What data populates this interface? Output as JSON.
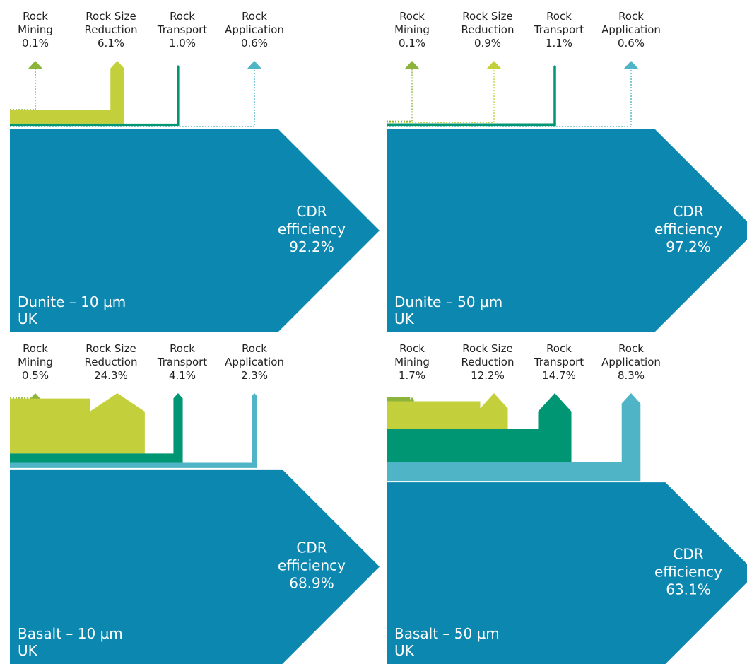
{
  "colors": {
    "mining": "#8db43a",
    "size_reduction": "#c4d03b",
    "transport": "#009674",
    "application": "#4fb5c6",
    "cdr": "#0b87b0"
  },
  "panels": [
    {
      "rock": "Dunite – 10 µm",
      "region": "UK",
      "cdr": {
        "lines": [
          "CDR",
          "efficiency",
          "92.2%"
        ],
        "value": 92.2
      },
      "losses": [
        {
          "key": "mining",
          "lines": [
            "Rock",
            "Mining",
            "0.1%"
          ],
          "value": 0.1
        },
        {
          "key": "size_reduction",
          "lines": [
            "Rock Size",
            "Reduction",
            "6.1%"
          ],
          "value": 6.1
        },
        {
          "key": "transport",
          "lines": [
            "Rock",
            "Transport",
            "1.0%"
          ],
          "value": 1.0
        },
        {
          "key": "application",
          "lines": [
            "Rock",
            "Application",
            "0.6%"
          ],
          "value": 0.6
        }
      ]
    },
    {
      "rock": "Dunite – 50 µm",
      "region": "UK",
      "cdr": {
        "lines": [
          "CDR",
          "efficiency",
          "97.2%"
        ],
        "value": 97.2
      },
      "losses": [
        {
          "key": "mining",
          "lines": [
            "Rock",
            "Mining",
            "0.1%"
          ],
          "value": 0.1
        },
        {
          "key": "size_reduction",
          "lines": [
            "Rock Size",
            "Reduction",
            "0.9%"
          ],
          "value": 0.9
        },
        {
          "key": "transport",
          "lines": [
            "Rock",
            "Transport",
            "1.1%"
          ],
          "value": 1.1
        },
        {
          "key": "application",
          "lines": [
            "Rock",
            "Application",
            "0.6%"
          ],
          "value": 0.6
        }
      ]
    },
    {
      "rock": "Basalt – 10 µm",
      "region": "UK",
      "cdr": {
        "lines": [
          "CDR",
          "efficiency",
          "68.9%"
        ],
        "value": 68.9
      },
      "losses": [
        {
          "key": "mining",
          "lines": [
            "Rock",
            "Mining",
            "0.5%"
          ],
          "value": 0.5
        },
        {
          "key": "size_reduction",
          "lines": [
            "Rock Size",
            "Reduction",
            "24.3%"
          ],
          "value": 24.3
        },
        {
          "key": "transport",
          "lines": [
            "Rock",
            "Transport",
            "4.1%"
          ],
          "value": 4.1
        },
        {
          "key": "application",
          "lines": [
            "Rock",
            "Application",
            "2.3%"
          ],
          "value": 2.3
        }
      ]
    },
    {
      "rock": "Basalt – 50 µm",
      "region": "UK",
      "cdr": {
        "lines": [
          "CDR",
          "efficiency",
          "63.1%"
        ],
        "value": 63.1
      },
      "losses": [
        {
          "key": "mining",
          "lines": [
            "Rock",
            "Mining",
            "1.7%"
          ],
          "value": 1.7
        },
        {
          "key": "size_reduction",
          "lines": [
            "Rock Size",
            "Reduction",
            "12.2%"
          ],
          "value": 12.2
        },
        {
          "key": "transport",
          "lines": [
            "Rock",
            "Transport",
            "14.7%"
          ],
          "value": 14.7
        },
        {
          "key": "application",
          "lines": [
            "Rock",
            "Application",
            "8.3%"
          ],
          "value": 8.3
        }
      ]
    }
  ]
}
